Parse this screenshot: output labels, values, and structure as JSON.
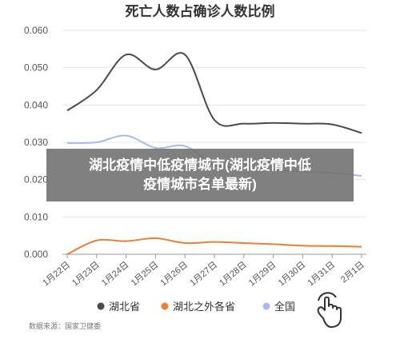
{
  "chart_data": {
    "type": "line",
    "title": "死亡人数占确诊人数比例",
    "categories": [
      "1月22日",
      "1月23日",
      "1月24日",
      "1月25日",
      "1月26日",
      "1月27日",
      "1月28日",
      "1月29日",
      "1月30日",
      "1月31日",
      "2月1日"
    ],
    "ylim": [
      0,
      0.06
    ],
    "yticks": [
      "0.000",
      "0.010",
      "0.020",
      "0.030",
      "0.040",
      "0.050",
      "0.060"
    ],
    "grid": true,
    "legend_position": "bottom",
    "series": [
      {
        "name": "湖北省",
        "color": "#4a4a4a",
        "values": [
          0.0385,
          0.044,
          0.0535,
          0.0495,
          0.0535,
          0.036,
          0.035,
          0.0352,
          0.035,
          0.0348,
          0.0325
        ]
      },
      {
        "name": "湖北之外各省",
        "color": "#ef7e34",
        "values": [
          0.0,
          0.0037,
          0.0035,
          0.0043,
          0.003,
          0.0033,
          0.003,
          0.0027,
          0.0023,
          0.0022,
          0.002
        ]
      },
      {
        "name": "全国",
        "color": "#a9b9f0",
        "values": [
          0.0298,
          0.03,
          0.0318,
          0.0285,
          0.029,
          0.024,
          0.0232,
          0.0225,
          0.0222,
          0.0218,
          0.021
        ]
      }
    ]
  },
  "source": "数据来源：国家卫健委",
  "overlay": {
    "line1": "湖北疫情中低疫情城市(湖北疫情中低",
    "line2": "疫情城市名单最新)"
  },
  "icons": {
    "hand": "hand-pointer-icon"
  }
}
